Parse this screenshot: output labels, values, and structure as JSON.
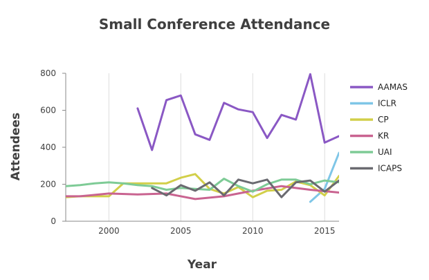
{
  "chart_data": {
    "type": "line",
    "title": "Small Conference Attendance",
    "xlabel": "Year",
    "ylabel": "Attendees",
    "xlim": [
      1997,
      2016
    ],
    "ylim": [
      0,
      800
    ],
    "xticks": [
      2000,
      2005,
      2010,
      2015
    ],
    "yticks": [
      0,
      200,
      400,
      600,
      800
    ],
    "grid": "vertical",
    "legend": "right",
    "series": [
      {
        "name": "AAMAS",
        "color": "#8a58c4",
        "points": [
          [
            2002,
            610
          ],
          [
            2003,
            385
          ],
          [
            2004,
            655
          ],
          [
            2005,
            680
          ],
          [
            2006,
            470
          ],
          [
            2007,
            440
          ],
          [
            2008,
            640
          ],
          [
            2009,
            605
          ],
          [
            2010,
            590
          ],
          [
            2011,
            450
          ],
          [
            2012,
            575
          ],
          [
            2013,
            550
          ],
          [
            2014,
            795
          ],
          [
            2015,
            425
          ],
          [
            2016,
            460
          ]
        ]
      },
      {
        "name": "ICLR",
        "color": "#7fc6e7",
        "points": [
          [
            2014,
            105
          ],
          [
            2015,
            175
          ],
          [
            2016,
            370
          ]
        ]
      },
      {
        "name": "CP",
        "color": "#d2cf49",
        "points": [
          [
            1997,
            130
          ],
          [
            1998,
            135
          ],
          [
            1999,
            135
          ],
          [
            2000,
            135
          ],
          [
            2001,
            205
          ],
          [
            2002,
            205
          ],
          [
            2003,
            205
          ],
          [
            2004,
            205
          ],
          [
            2005,
            235
          ],
          [
            2006,
            255
          ],
          [
            2007,
            175
          ],
          [
            2008,
            150
          ],
          [
            2009,
            185
          ],
          [
            2010,
            130
          ],
          [
            2011,
            165
          ],
          [
            2012,
            170
          ],
          [
            2013,
            215
          ],
          [
            2014,
            195
          ],
          [
            2015,
            140
          ],
          [
            2016,
            245
          ]
        ]
      },
      {
        "name": "KR",
        "color": "#c96390",
        "points": [
          [
            1997,
            135
          ],
          [
            1998,
            135
          ],
          [
            2000,
            150
          ],
          [
            2002,
            145
          ],
          [
            2004,
            150
          ],
          [
            2006,
            120
          ],
          [
            2008,
            135
          ],
          [
            2010,
            165
          ],
          [
            2012,
            190
          ],
          [
            2014,
            170
          ],
          [
            2016,
            155
          ]
        ]
      },
      {
        "name": "UAI",
        "color": "#7ecb96",
        "points": [
          [
            1997,
            190
          ],
          [
            1998,
            195
          ],
          [
            1999,
            205
          ],
          [
            2000,
            210
          ],
          [
            2001,
            205
          ],
          [
            2002,
            195
          ],
          [
            2003,
            190
          ],
          [
            2004,
            170
          ],
          [
            2005,
            180
          ],
          [
            2006,
            175
          ],
          [
            2007,
            170
          ],
          [
            2008,
            230
          ],
          [
            2009,
            190
          ],
          [
            2010,
            160
          ],
          [
            2011,
            200
          ],
          [
            2012,
            225
          ],
          [
            2013,
            225
          ],
          [
            2014,
            200
          ],
          [
            2015,
            220
          ],
          [
            2016,
            210
          ]
        ]
      },
      {
        "name": "ICAPS",
        "color": "#6a6a70",
        "points": [
          [
            2003,
            180
          ],
          [
            2004,
            140
          ],
          [
            2005,
            195
          ],
          [
            2006,
            165
          ],
          [
            2007,
            210
          ],
          [
            2008,
            140
          ],
          [
            2009,
            225
          ],
          [
            2010,
            205
          ],
          [
            2011,
            225
          ],
          [
            2012,
            130
          ],
          [
            2013,
            210
          ],
          [
            2014,
            220
          ],
          [
            2015,
            160
          ],
          [
            2016,
            220
          ]
        ]
      }
    ]
  }
}
